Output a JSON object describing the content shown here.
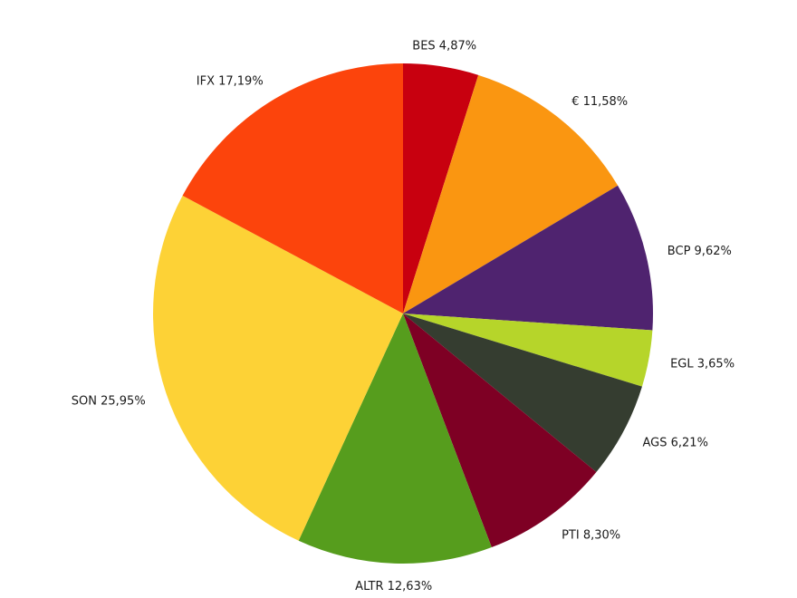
{
  "chart_data": {
    "type": "pie",
    "title": "",
    "start": "12 o'clock, clockwise",
    "slices": [
      {
        "label": "BES 4,87%",
        "name": "BES",
        "value": 4.87,
        "color": "#c8000f"
      },
      {
        "label": "€ 11,58%",
        "name": "€",
        "value": 11.58,
        "color": "#fa9611"
      },
      {
        "label": "BCP 9,62%",
        "name": "BCP",
        "value": 9.62,
        "color": "#4f236f"
      },
      {
        "label": "EGL 3,65%",
        "name": "EGL",
        "value": 3.65,
        "color": "#b6d52a"
      },
      {
        "label": "AGS 6,21%",
        "name": "AGS",
        "value": 6.21,
        "color": "#353d30"
      },
      {
        "label": "PTI 8,30%",
        "name": "PTI",
        "value": 8.3,
        "color": "#7e0024"
      },
      {
        "label": "ALTR 12,63%",
        "name": "ALTR",
        "value": 12.63,
        "color": "#569d1d"
      },
      {
        "label": "SON 25,95%",
        "name": "SON",
        "value": 25.95,
        "color": "#fdd236"
      },
      {
        "label": "IFX 17,19%",
        "name": "IFX",
        "value": 17.19,
        "color": "#fc440c"
      }
    ]
  }
}
